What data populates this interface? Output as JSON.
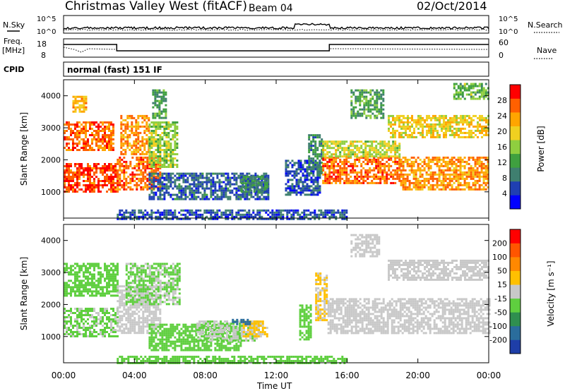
{
  "header": {
    "station": "Christmas Valley West (fitACF)",
    "beam": "Beam 04",
    "date": "02/Oct/2014"
  },
  "status_panels": {
    "nsky_label": "N.Sky",
    "nsearch_label": "N.Search",
    "freq_label_1": "Freq.",
    "freq_label_2": "[MHz]",
    "nave_label": "Nave",
    "cpid_label": "CPID",
    "cpid_text": "normal (fast) 151 IF",
    "noise_ticks": [
      "10^5",
      "10^0"
    ],
    "freq_ticks": [
      "18",
      "8"
    ],
    "nave_ticks": [
      "60",
      "0"
    ]
  },
  "colors": {
    "power": [
      "#0000ff",
      "#1f3fb2",
      "#3f7f6f",
      "#3fa03f",
      "#8fce3f",
      "#f0d020",
      "#ffa500",
      "#ff6000",
      "#ff0000"
    ],
    "velocity": [
      "#1e3ea8",
      "#2a6d9c",
      "#2f8f4f",
      "#5fcf3f",
      "#c8c8c8",
      "#ffc000",
      "#ff8800",
      "#ff5500",
      "#ff0000"
    ]
  },
  "chart_data": [
    {
      "type": "heatmap",
      "panel": "power",
      "ylabel": "Slant Range [km]",
      "xlabel": "",
      "ylim": [
        180,
        4500
      ],
      "yticks": [
        "1000",
        "2000",
        "3000",
        "4000"
      ],
      "x_range_hours": [
        0,
        24
      ],
      "colorbar_label": "Power [dB]",
      "colorbar_ticks": [
        "4",
        "8",
        "12",
        "16",
        "20",
        "24",
        "28"
      ],
      "colorbar_range": [
        0,
        32
      ],
      "regions": [
        {
          "t0": 0.0,
          "t1": 3.0,
          "r0": 1000,
          "r1": 1900,
          "value": 28
        },
        {
          "t0": 0.0,
          "t1": 2.8,
          "r0": 2300,
          "r1": 3200,
          "value": 26
        },
        {
          "t0": 0.5,
          "t1": 1.3,
          "r0": 3500,
          "r1": 4000,
          "value": 22
        },
        {
          "t0": 3.0,
          "t1": 5.5,
          "r0": 1100,
          "r1": 2100,
          "value": 26
        },
        {
          "t0": 3.2,
          "t1": 4.8,
          "r0": 2200,
          "r1": 3400,
          "value": 24
        },
        {
          "t0": 4.8,
          "t1": 6.4,
          "r0": 1800,
          "r1": 3200,
          "value": 16
        },
        {
          "t0": 5.0,
          "t1": 5.8,
          "r0": 3300,
          "r1": 4200,
          "value": 12
        },
        {
          "t0": 4.8,
          "t1": 11.5,
          "r0": 800,
          "r1": 1600,
          "value": 7
        },
        {
          "t0": 10.0,
          "t1": 11.5,
          "r0": 1000,
          "r1": 1500,
          "value": 10
        },
        {
          "t0": 12.5,
          "t1": 14.5,
          "r0": 900,
          "r1": 2000,
          "value": 6
        },
        {
          "t0": 13.8,
          "t1": 14.6,
          "r0": 1500,
          "r1": 2800,
          "value": 10
        },
        {
          "t0": 14.6,
          "t1": 19.0,
          "r0": 1300,
          "r1": 2100,
          "value": 26
        },
        {
          "t0": 14.6,
          "t1": 19.0,
          "r0": 2100,
          "r1": 2600,
          "value": 18
        },
        {
          "t0": 19.0,
          "t1": 24.0,
          "r0": 1100,
          "r1": 2100,
          "value": 24
        },
        {
          "t0": 16.2,
          "t1": 18.0,
          "r0": 3300,
          "r1": 4200,
          "value": 12
        },
        {
          "t0": 18.3,
          "t1": 24.0,
          "r0": 2700,
          "r1": 3400,
          "value": 20
        },
        {
          "t0": 22.0,
          "t1": 24.0,
          "r0": 3900,
          "r1": 4400,
          "value": 14
        },
        {
          "t0": 3.0,
          "t1": 16.0,
          "r0": 180,
          "r1": 450,
          "value": 6
        }
      ]
    },
    {
      "type": "heatmap",
      "panel": "velocity",
      "ylabel": "Slant Range [km]",
      "xlabel": "Time UT",
      "ylim": [
        180,
        4500
      ],
      "yticks": [
        "1000",
        "2000",
        "3000",
        "4000"
      ],
      "x_range_hours": [
        0,
        24
      ],
      "xticks": [
        "00:00",
        "04:00",
        "08:00",
        "12:00",
        "16:00",
        "20:00",
        "00:00"
      ],
      "colorbar_label": "Velocity [m s⁻¹]",
      "colorbar_ticks": [
        "200",
        "100",
        "50",
        "15",
        "-15",
        "-50",
        "-100",
        "-200"
      ],
      "colorbar_range": [
        -300,
        300
      ],
      "regions": [
        {
          "t0": 0.0,
          "t1": 3.0,
          "r0": 2300,
          "r1": 3300,
          "value": -60
        },
        {
          "t0": 0.0,
          "t1": 3.0,
          "r0": 1000,
          "r1": 1900,
          "value": -40
        },
        {
          "t0": 3.0,
          "t1": 5.5,
          "r0": 1100,
          "r1": 2600,
          "value": 0
        },
        {
          "t0": 3.5,
          "t1": 6.5,
          "r0": 2000,
          "r1": 3300,
          "value": -40
        },
        {
          "t0": 4.8,
          "t1": 10.0,
          "r0": 600,
          "r1": 1400,
          "value": -60
        },
        {
          "t0": 7.5,
          "t1": 11.0,
          "r0": 900,
          "r1": 1500,
          "value": -30
        },
        {
          "t0": 10.0,
          "t1": 11.5,
          "r0": 1000,
          "r1": 1500,
          "value": 40
        },
        {
          "t0": 9.5,
          "t1": 10.5,
          "r0": 1400,
          "r1": 1550,
          "value": -200
        },
        {
          "t0": 13.3,
          "t1": 13.9,
          "r0": 900,
          "r1": 2000,
          "value": -60
        },
        {
          "t0": 14.2,
          "t1": 14.9,
          "r0": 1500,
          "r1": 3000,
          "value": 40
        },
        {
          "t0": 14.9,
          "t1": 24.0,
          "r0": 1100,
          "r1": 2200,
          "value": 0
        },
        {
          "t0": 16.2,
          "t1": 17.8,
          "r0": 3500,
          "r1": 4200,
          "value": 0
        },
        {
          "t0": 18.3,
          "t1": 24.0,
          "r0": 2800,
          "r1": 3400,
          "value": 0
        },
        {
          "t0": 3.0,
          "t1": 16.0,
          "r0": 180,
          "r1": 400,
          "value": -60
        }
      ]
    }
  ]
}
